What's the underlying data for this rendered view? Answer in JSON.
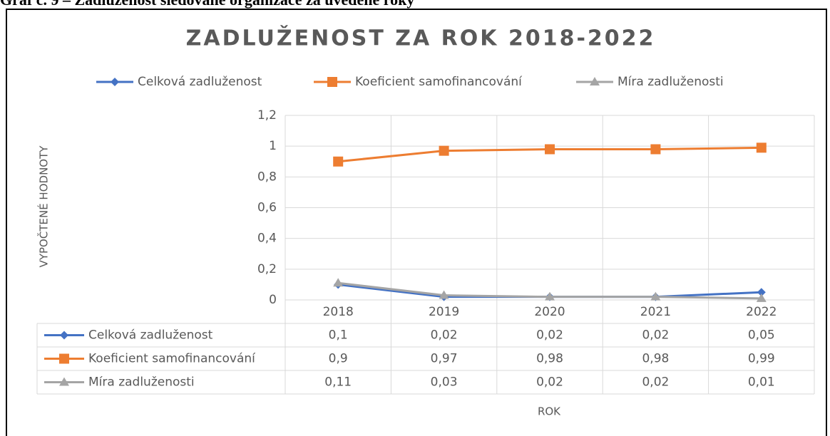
{
  "caption": "Graf č. 9 – Zadluženost sledované organizace za uvedené roky",
  "chart_data": {
    "type": "line",
    "title": "ZADLUŽENOST ZA ROK 2018-2022",
    "y_label": "VYPOČTENÉ HODNOTY",
    "x_label": "ROK",
    "categories": [
      "2018",
      "2019",
      "2020",
      "2021",
      "2022"
    ],
    "series": [
      {
        "name": "Celková zadluženost",
        "color": "#4472c4",
        "marker": "diamond",
        "values": [
          0.1,
          0.02,
          0.02,
          0.02,
          0.05
        ],
        "value_labels": [
          "0,1",
          "0,02",
          "0,02",
          "0,02",
          "0,05"
        ]
      },
      {
        "name": "Koeficient samofinancování",
        "color": "#ed7d31",
        "marker": "square",
        "values": [
          0.9,
          0.97,
          0.98,
          0.98,
          0.99
        ],
        "value_labels": [
          "0,9",
          "0,97",
          "0,98",
          "0,98",
          "0,99"
        ]
      },
      {
        "name": "Míra zadluženosti",
        "color": "#a5a5a5",
        "marker": "triangle",
        "values": [
          0.11,
          0.03,
          0.02,
          0.02,
          0.01
        ],
        "value_labels": [
          "0,11",
          "0,03",
          "0,02",
          "0,02",
          "0,01"
        ]
      }
    ],
    "ylim": [
      0,
      1.2
    ],
    "yticks": [
      0,
      {
        "value": 0.2,
        "label": "0,2"
      },
      {
        "value": 0.4,
        "label": "0,4"
      },
      {
        "value": 0.6,
        "label": "0,6"
      },
      {
        "value": 0.8,
        "label": "0,8"
      },
      1,
      {
        "value": 1.2,
        "label": "1,2"
      }
    ],
    "grid": true,
    "legend": "top",
    "data_table": true
  }
}
